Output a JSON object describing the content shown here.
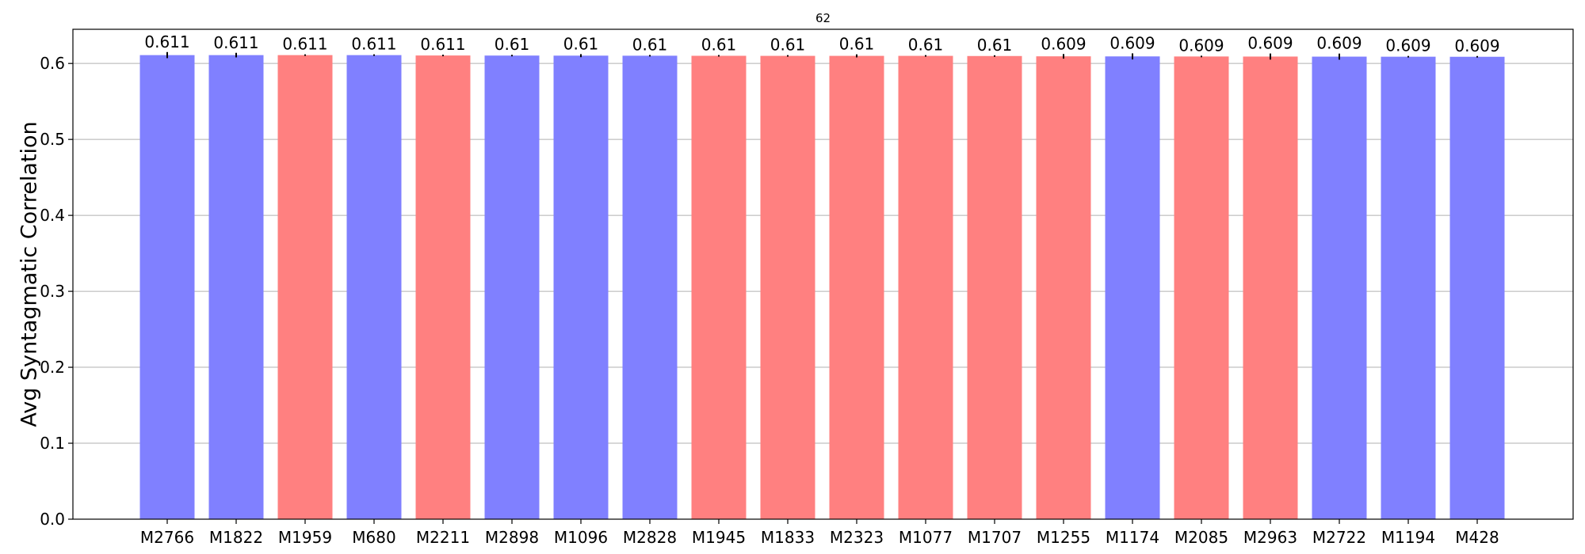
{
  "chart_data": {
    "type": "bar",
    "title": "62",
    "xlabel": "",
    "ylabel": "Avg Syntagmatic Correlation",
    "ylim": [
      0,
      0.645
    ],
    "yticks": [
      "0.0",
      "0.1",
      "0.2",
      "0.3",
      "0.4",
      "0.5",
      "0.6"
    ],
    "grid": "horizontal",
    "colors": {
      "blue": "#8080ff",
      "red": "#ff8080"
    },
    "categories": [
      "M2766",
      "M1822",
      "M1959",
      "M680",
      "M2211",
      "M2898",
      "M1096",
      "M2828",
      "M1945",
      "M1833",
      "M2323",
      "M1077",
      "M1707",
      "M1255",
      "M1174",
      "M2085",
      "M2963",
      "M2722",
      "M1194",
      "M428"
    ],
    "values": [
      0.611,
      0.611,
      0.611,
      0.611,
      0.6105,
      0.6104,
      0.6103,
      0.6102,
      0.6101,
      0.61,
      0.61,
      0.61,
      0.6098,
      0.6094,
      0.6093,
      0.6092,
      0.6091,
      0.609,
      0.6089,
      0.6088
    ],
    "errors": [
      0.004,
      0.003,
      0.001,
      0.001,
      0.001,
      0.001,
      0.002,
      0.001,
      0.001,
      0.001,
      0.002,
      0.001,
      0.001,
      0.003,
      0.004,
      0.001,
      0.004,
      0.004,
      0.001,
      0.001
    ],
    "labels": [
      "0.611",
      "0.611",
      "0.611",
      "0.611",
      "0.611",
      "0.61",
      "0.61",
      "0.61",
      "0.61",
      "0.61",
      "0.61",
      "0.61",
      "0.61",
      "0.609",
      "0.609",
      "0.609",
      "0.609",
      "0.609",
      "0.609",
      "0.609"
    ],
    "bar_colors": [
      "blue",
      "blue",
      "red",
      "blue",
      "red",
      "blue",
      "blue",
      "blue",
      "red",
      "red",
      "red",
      "red",
      "red",
      "red",
      "blue",
      "red",
      "red",
      "blue",
      "blue",
      "blue"
    ]
  }
}
